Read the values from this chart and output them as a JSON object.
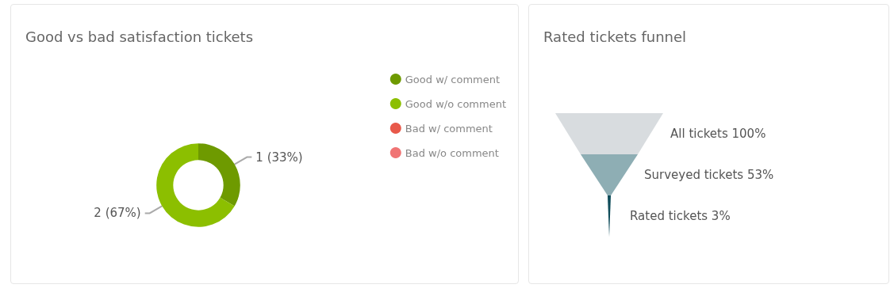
{
  "chart_data": [
    {
      "type": "donut",
      "title": "Good vs bad satisfaction tickets",
      "categories": [
        "Good w/ comment",
        "Good w/o comment",
        "Bad w/ comment",
        "Bad w/o comment"
      ],
      "values": [
        1,
        2,
        0,
        0
      ],
      "colors": [
        "#6e9a00",
        "#8cbf00",
        "#e8594a",
        "#f07474"
      ],
      "value_labels": [
        "1 (33%)",
        "2 (67%)",
        null,
        null
      ],
      "legend": "top right"
    },
    {
      "type": "other",
      "title": "Rated tickets funnel",
      "categories": [
        "All tickets",
        "Surveyed tickets",
        "Rated tickets"
      ],
      "values": [
        100,
        53,
        3
      ],
      "colors": [
        "#d8dcdf",
        "#8eaeb4",
        "#0f4c5a"
      ],
      "value_labels": [
        "100%",
        "53%",
        "3%"
      ]
    }
  ]
}
